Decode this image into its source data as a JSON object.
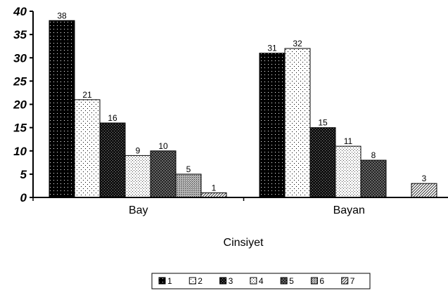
{
  "chart_data": {
    "type": "bar",
    "title": "",
    "xlabel": "Cinsiyet",
    "ylabel": "",
    "categories": [
      "Bay",
      "Bayan"
    ],
    "yticks": [
      "0",
      "5",
      "10",
      "15",
      "20",
      "25",
      "30",
      "35",
      "40"
    ],
    "ylim": [
      0,
      40
    ],
    "grid": false,
    "legend_position": "bottom",
    "series": [
      {
        "name": "1",
        "values": [
          38,
          31
        ],
        "pattern": "black-dots"
      },
      {
        "name": "2",
        "values": [
          21,
          32
        ],
        "pattern": "white-dots"
      },
      {
        "name": "3",
        "values": [
          16,
          15
        ],
        "pattern": "dark-checker"
      },
      {
        "name": "4",
        "values": [
          9,
          11
        ],
        "pattern": "light-dots"
      },
      {
        "name": "5",
        "values": [
          10,
          8
        ],
        "pattern": "dark-grid"
      },
      {
        "name": "6",
        "values": [
          5,
          0
        ],
        "pattern": "medium-dots"
      },
      {
        "name": "7",
        "values": [
          1,
          3
        ],
        "pattern": "diagonal"
      }
    ],
    "data_labels": [
      [
        "38",
        "31"
      ],
      [
        "21",
        "32"
      ],
      [
        "16",
        "15"
      ],
      [
        "9",
        "11"
      ],
      [
        "10",
        "8"
      ],
      [
        "5",
        ""
      ],
      [
        "1",
        "3"
      ]
    ]
  }
}
